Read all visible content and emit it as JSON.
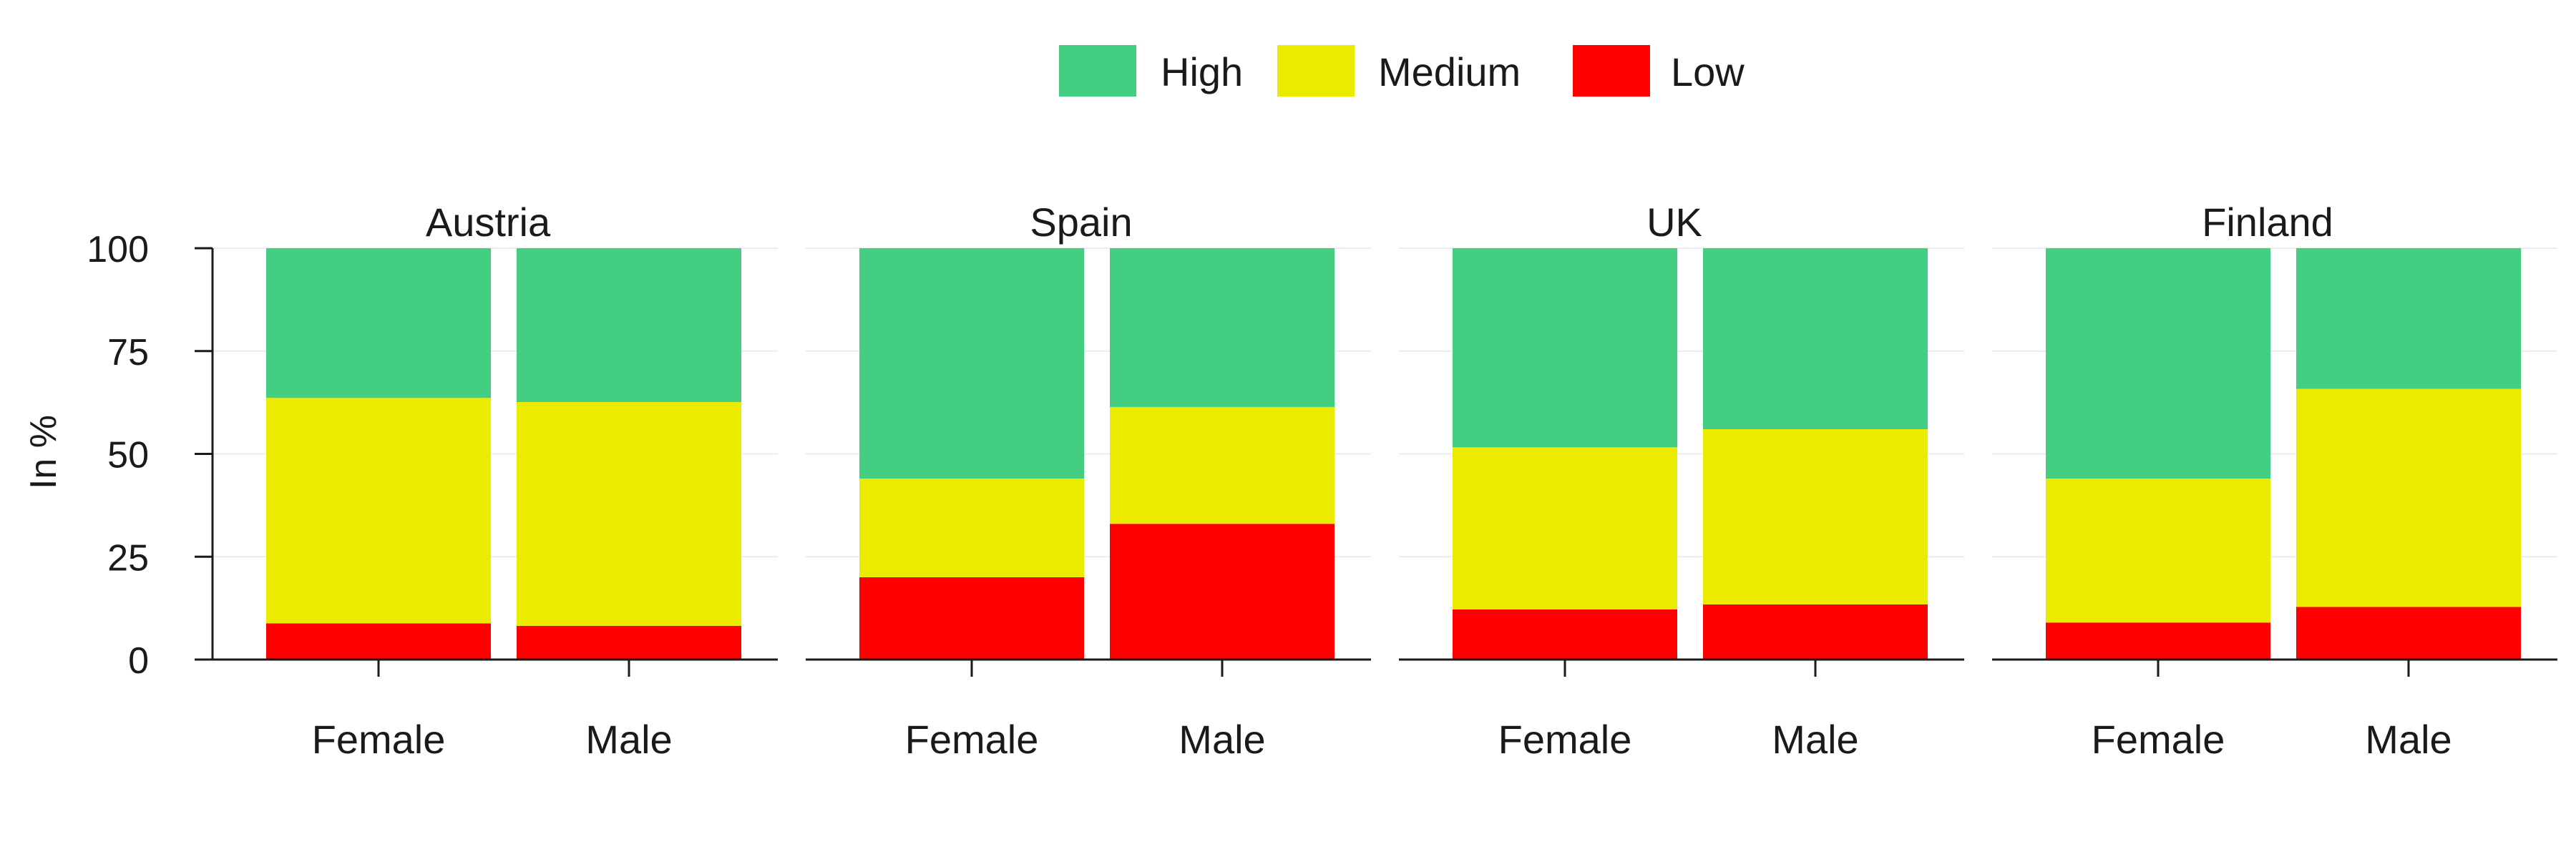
{
  "chart_data": {
    "type": "bar",
    "stacked": true,
    "ylabel": "In %",
    "ylim": [
      0,
      100
    ],
    "yticks": [
      0,
      25,
      50,
      75,
      100
    ],
    "legend": {
      "placement": "top-center",
      "entries": [
        "High",
        "Medium",
        "Low"
      ]
    },
    "colors": {
      "High": "#44CE82",
      "Medium": "#EBEB00",
      "Low": "#FF0000"
    },
    "categories": [
      "Female",
      "Male"
    ],
    "panels": [
      {
        "title": "Austria",
        "series": [
          {
            "name": "Low",
            "values": [
              8.8,
              8.2
            ]
          },
          {
            "name": "Medium",
            "values": [
              54.8,
              54.4
            ]
          },
          {
            "name": "High",
            "values": [
              36.4,
              37.4
            ]
          }
        ]
      },
      {
        "title": "Spain",
        "series": [
          {
            "name": "Low",
            "values": [
              20.0,
              33.0
            ]
          },
          {
            "name": "Medium",
            "values": [
              24.0,
              28.4
            ]
          },
          {
            "name": "High",
            "values": [
              56.0,
              38.6
            ]
          }
        ]
      },
      {
        "title": "UK",
        "series": [
          {
            "name": "Low",
            "values": [
              12.2,
              13.4
            ]
          },
          {
            "name": "Medium",
            "values": [
              39.4,
              42.6
            ]
          },
          {
            "name": "High",
            "values": [
              48.4,
              44.0
            ]
          }
        ]
      },
      {
        "title": "Finland",
        "series": [
          {
            "name": "Low",
            "values": [
              9.0,
              12.8
            ]
          },
          {
            "name": "Medium",
            "values": [
              35.0,
              53.0
            ]
          },
          {
            "name": "High",
            "values": [
              56.0,
              34.2
            ]
          }
        ]
      }
    ]
  }
}
